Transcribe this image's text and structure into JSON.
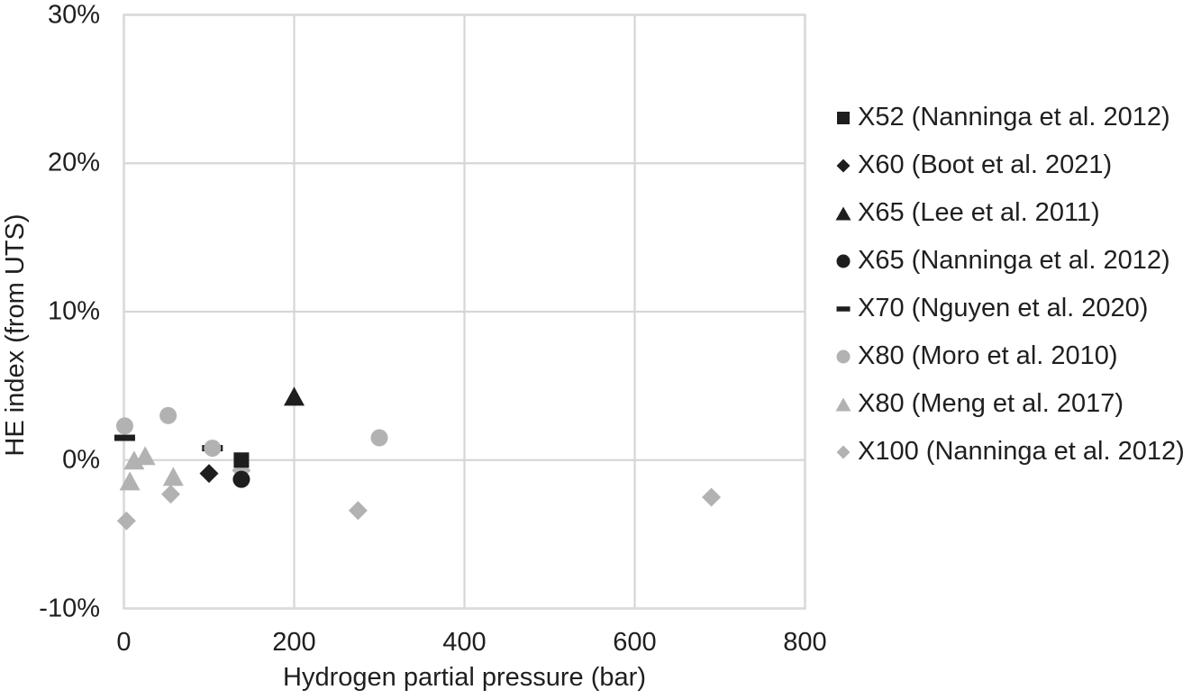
{
  "colors": {
    "grid": "#d6d6d6",
    "border": "#d9d9d9",
    "text": "#1f1f1f",
    "marker_black": "#1e1e1e",
    "marker_gray": "#b2b2b2"
  },
  "chart_data": {
    "type": "scatter",
    "xlabel": "Hydrogen partial pressure (bar)",
    "ylabel": "HE index (from UTS)",
    "xlim": [
      0,
      800
    ],
    "ylim": [
      -10,
      30
    ],
    "x_ticks": [
      0,
      200,
      400,
      600,
      800
    ],
    "y_ticks": [
      30,
      20,
      10,
      0,
      -10
    ],
    "y_tick_suffix": "%",
    "grid": true,
    "legend_position": "right",
    "series": [
      {
        "name": "X52 (Nanninga et al. 2012)",
        "marker": "square",
        "color": "#1e1e1e",
        "points": [
          [
            138,
            0.0
          ]
        ]
      },
      {
        "name": "X60 (Boot et al. 2021)",
        "marker": "diamond",
        "color": "#1e1e1e",
        "points": [
          [
            100,
            -0.9
          ]
        ]
      },
      {
        "name": "X65 (Lee et al. 2011)",
        "marker": "triangle",
        "color": "#1e1e1e",
        "points": [
          [
            200,
            4.3
          ]
        ]
      },
      {
        "name": "X65 (Nanninga et al. 2012)",
        "marker": "circle",
        "color": "#1e1e1e",
        "points": [
          [
            138,
            -1.3
          ]
        ]
      },
      {
        "name": "X70 (Nguyen et al. 2020)",
        "marker": "dash",
        "color": "#1e1e1e",
        "points": [
          [
            1,
            1.5
          ],
          [
            104,
            0.8
          ]
        ]
      },
      {
        "name": "X80 (Moro et al. 2010)",
        "marker": "circle",
        "color": "#b2b2b2",
        "points": [
          [
            1,
            2.3
          ],
          [
            52,
            3.0
          ],
          [
            104,
            0.8
          ],
          [
            300,
            1.5
          ]
        ]
      },
      {
        "name": "X80 (Meng et al. 2017)",
        "marker": "triangle",
        "color": "#b2b2b2",
        "points": [
          [
            7,
            -1.4
          ],
          [
            12,
            0.0
          ],
          [
            25,
            0.3
          ],
          [
            58,
            -1.1
          ]
        ]
      },
      {
        "name": "X100 (Nanninga et al. 2012)",
        "marker": "diamond",
        "color": "#b2b2b2",
        "z": 0,
        "points": [
          [
            3,
            -4.1
          ],
          [
            55,
            -2.3
          ],
          [
            138,
            -0.7
          ],
          [
            275,
            -3.4
          ],
          [
            690,
            -2.5
          ]
        ]
      }
    ]
  }
}
